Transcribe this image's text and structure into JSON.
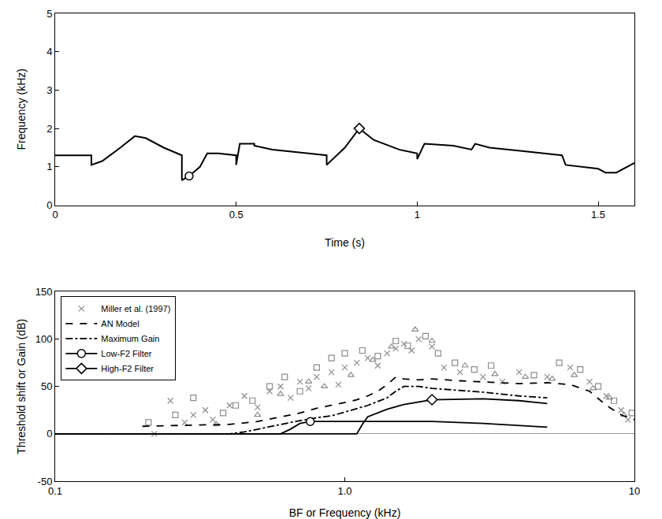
{
  "chart_data": [
    {
      "type": "line",
      "xlabel": "Time (s)",
      "ylabel": "Frequency (kHz)",
      "xlim": [
        0,
        1.6
      ],
      "ylim": [
        0,
        5
      ],
      "xticks": [
        0,
        0.5,
        1,
        1.5
      ],
      "yticks": [
        0,
        1,
        2,
        3,
        4,
        5
      ],
      "grid": false,
      "series": [
        {
          "color": "#000000",
          "line_style": "solid",
          "x": [
            0,
            0.1,
            0.1,
            0.13,
            0.18,
            0.22,
            0.25,
            0.3,
            0.35,
            0.35,
            0.37,
            0.4,
            0.42,
            0.45,
            0.5,
            0.5,
            0.51,
            0.55,
            0.55,
            0.6,
            0.7,
            0.75,
            0.75,
            0.8,
            0.84,
            0.88,
            0.95,
            1.0,
            1.0,
            1.02,
            1.1,
            1.15,
            1.16,
            1.2,
            1.3,
            1.4,
            1.41,
            1.45,
            1.5,
            1.52,
            1.55,
            1.6
          ],
          "values": [
            1.3,
            1.3,
            1.05,
            1.15,
            1.5,
            1.8,
            1.75,
            1.5,
            1.3,
            0.65,
            0.76,
            1.0,
            1.35,
            1.35,
            1.3,
            1.05,
            1.6,
            1.6,
            1.55,
            1.45,
            1.35,
            1.3,
            1.05,
            1.5,
            2.0,
            1.7,
            1.45,
            1.35,
            1.2,
            1.6,
            1.55,
            1.45,
            1.6,
            1.5,
            1.4,
            1.3,
            1.05,
            1.0,
            0.95,
            0.85,
            0.85,
            1.1
          ],
          "markers": [
            {
              "x": 0.37,
              "y": 0.76,
              "marker": "circle"
            },
            {
              "x": 0.84,
              "y": 2.0,
              "marker": "diamond"
            }
          ]
        }
      ]
    },
    {
      "type": "scatter",
      "xlabel": "BF or Frequency (kHz)",
      "ylabel": "Threshold shift or Gain (dB)",
      "log": "x",
      "xlim": [
        0.1,
        10
      ],
      "ylim": [
        -50,
        150
      ],
      "xticks": [
        0.1,
        {
          "value": 1,
          "label": "1.0"
        },
        10
      ],
      "yticks": [
        -50,
        0,
        50,
        100,
        150
      ],
      "grid": false,
      "legend": "top left",
      "series": [
        {
          "name": "Miller et al. (1997)",
          "type": "scatter",
          "marker": "x",
          "color": "#8c8c8c",
          "x": [
            0.22,
            0.25,
            0.28,
            0.3,
            0.33,
            0.35,
            0.4,
            0.45,
            0.5,
            0.55,
            0.6,
            0.65,
            0.7,
            0.75,
            0.8,
            0.9,
            0.95,
            1.0,
            1.1,
            1.2,
            1.3,
            1.4,
            1.5,
            1.6,
            1.7,
            1.8,
            2.0,
            2.2,
            2.5,
            3.0,
            3.5,
            4.0,
            5.0,
            6.0,
            7.0,
            8.0,
            9.0,
            9.5
          ],
          "values": [
            0,
            35,
            12,
            20,
            25,
            15,
            30,
            40,
            28,
            45,
            50,
            38,
            55,
            48,
            60,
            65,
            52,
            70,
            75,
            80,
            72,
            85,
            90,
            95,
            88,
            100,
            92,
            70,
            65,
            60,
            55,
            65,
            60,
            70,
            55,
            40,
            25,
            15
          ]
        },
        {
          "type": "scatter",
          "marker": "square",
          "color": "#8c8c8c",
          "x": [
            0.21,
            0.26,
            0.3,
            0.38,
            0.42,
            0.48,
            0.55,
            0.62,
            0.7,
            0.8,
            0.9,
            1.0,
            1.15,
            1.3,
            1.5,
            1.65,
            1.9,
            2.1,
            2.4,
            2.8,
            3.2,
            4.5,
            5.5,
            6.5,
            7.5,
            8.5,
            9.8
          ],
          "values": [
            12,
            20,
            38,
            22,
            30,
            35,
            50,
            60,
            45,
            70,
            80,
            85,
            88,
            82,
            98,
            93,
            103,
            85,
            75,
            68,
            72,
            62,
            75,
            68,
            50,
            35,
            22
          ]
        },
        {
          "type": "scatter",
          "marker": "triangle-up",
          "color": "#8c8c8c",
          "x": [
            0.36,
            0.5,
            0.6,
            0.75,
            0.85,
            1.05,
            1.25,
            1.45,
            1.75,
            2.0,
            2.6,
            3.3,
            4.2,
            5.2,
            6.2,
            7.2,
            8.2,
            9.2
          ],
          "values": [
            10,
            20,
            42,
            55,
            50,
            62,
            78,
            92,
            110,
            98,
            72,
            63,
            60,
            58,
            62,
            48,
            38,
            20
          ]
        },
        {
          "name": "AN Model",
          "type": "line",
          "line_style": "dashed",
          "color": "#000000",
          "x": [
            0.2,
            0.3,
            0.4,
            0.5,
            0.6,
            0.7,
            0.8,
            0.9,
            1.0,
            1.1,
            1.2,
            1.3,
            1.4,
            1.5,
            1.6,
            1.8,
            2.0,
            2.5,
            3.0,
            4.0,
            5.0,
            6.0,
            7.0,
            8.0,
            9.0,
            10.0
          ],
          "values": [
            8,
            9,
            10,
            13,
            18,
            22,
            27,
            30,
            33,
            36,
            40,
            45,
            52,
            60,
            58,
            57,
            58,
            56,
            55,
            53,
            54,
            52,
            45,
            30,
            20,
            15
          ]
        },
        {
          "name": "Maximum Gain",
          "type": "line",
          "line_style": "dashdot",
          "color": "#000000",
          "x": [
            0.1,
            0.4,
            0.45,
            0.5,
            0.6,
            0.7,
            0.8,
            0.9,
            1.0,
            1.2,
            1.4,
            1.5,
            1.6,
            1.8,
            2.0,
            3.0,
            4.0,
            5.0
          ],
          "values": [
            0,
            0,
            2,
            5,
            10,
            14,
            17,
            19,
            23,
            30,
            38,
            45,
            50,
            50,
            48,
            44,
            40,
            38
          ]
        },
        {
          "name": "Low-F2 Filter",
          "type": "line",
          "line_style": "solid",
          "marker": "circle",
          "color": "#000000",
          "x": [
            0.1,
            0.6,
            0.65,
            0.7,
            0.76,
            1.0,
            2.0,
            3.0,
            4.0,
            5.0
          ],
          "values": [
            0,
            0,
            5,
            11,
            13,
            13,
            13,
            11,
            9,
            7
          ],
          "marker_x": 0.76
        },
        {
          "name": "High-F2 Filter",
          "type": "line",
          "line_style": "solid",
          "marker": "diamond",
          "color": "#000000",
          "x": [
            0.1,
            1.1,
            1.15,
            1.2,
            1.4,
            1.6,
            2.0,
            3.0,
            4.0,
            5.0
          ],
          "values": [
            0,
            0,
            10,
            18,
            26,
            31,
            36,
            37,
            35,
            32
          ],
          "marker_x": 2.0
        }
      ]
    }
  ]
}
